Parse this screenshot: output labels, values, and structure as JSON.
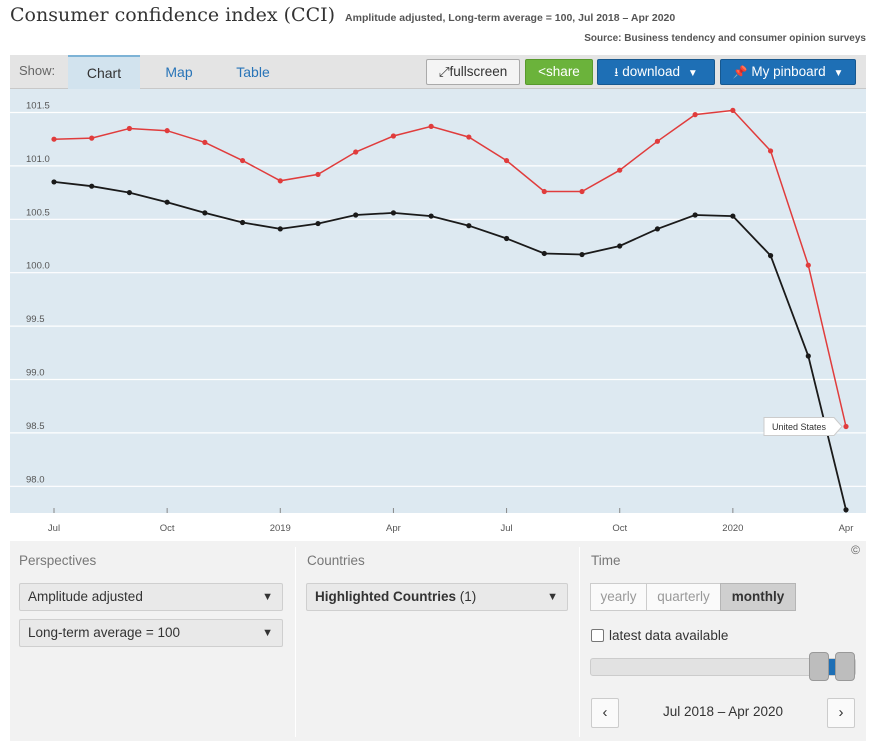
{
  "header": {
    "title": "Consumer confidence index (CCI)",
    "subtitle": "Amplitude adjusted, Long-term average = 100, Jul 2018 – Apr 2020",
    "source": "Source: Business tendency and consumer opinion surveys"
  },
  "tabs": {
    "show_label": "Show:",
    "items": [
      "Chart",
      "Map",
      "Table"
    ],
    "active": "Chart"
  },
  "toolbar": {
    "fullscreen": "fullscreen",
    "share": "share",
    "download": "download",
    "pinboard": "My pinboard",
    "colors": {
      "share": "#6bb33b",
      "download": "#1e6fb5",
      "pinboard": "#1e6fb5"
    }
  },
  "chart_data": {
    "type": "line",
    "x": [
      "Jul 2018",
      "Aug 2018",
      "Sep 2018",
      "Oct 2018",
      "Nov 2018",
      "Dec 2018",
      "Jan 2019",
      "Feb 2019",
      "Mar 2019",
      "Apr 2019",
      "May 2019",
      "Jun 2019",
      "Jul 2019",
      "Aug 2019",
      "Sep 2019",
      "Oct 2019",
      "Nov 2019",
      "Dec 2019",
      "Jan 2020",
      "Feb 2020",
      "Mar 2020",
      "Apr 2020"
    ],
    "xticks": [
      {
        "label": "Jul",
        "index": 0
      },
      {
        "label": "Oct",
        "index": 3
      },
      {
        "label": "2019",
        "index": 6
      },
      {
        "label": "Apr",
        "index": 9
      },
      {
        "label": "Jul",
        "index": 12
      },
      {
        "label": "Oct",
        "index": 15
      },
      {
        "label": "2020",
        "index": 18
      },
      {
        "label": "Apr",
        "index": 21
      }
    ],
    "yticks": [
      "101.5",
      "101.0",
      "100.5",
      "100.0",
      "99.5",
      "99.0",
      "98.5",
      "98.0"
    ],
    "ylim": [
      97.75,
      101.72
    ],
    "grid": true,
    "background": "#dde9f1",
    "series": [
      {
        "color": "#1a1a1a",
        "values": [
          100.85,
          100.81,
          100.75,
          100.66,
          100.56,
          100.47,
          100.41,
          100.46,
          100.54,
          100.56,
          100.53,
          100.44,
          100.32,
          100.18,
          100.17,
          100.25,
          100.41,
          100.54,
          100.53,
          100.16,
          99.22,
          97.78
        ]
      },
      {
        "name": "United States",
        "color": "#e03c3c",
        "values": [
          101.25,
          101.26,
          101.35,
          101.33,
          101.22,
          101.05,
          100.86,
          100.92,
          101.13,
          101.28,
          101.37,
          101.27,
          101.05,
          100.76,
          100.76,
          100.96,
          101.23,
          101.48,
          101.52,
          101.14,
          100.07,
          98.56
        ]
      }
    ],
    "annotation": {
      "text": "United States",
      "series": "United States",
      "index": 21
    }
  },
  "panel": {
    "perspectives": {
      "title": "Perspectives",
      "select1": "Amplitude adjusted",
      "select2": "Long-term average = 100"
    },
    "countries": {
      "title": "Countries",
      "select_label": "Highlighted Countries",
      "select_count": "(1)"
    },
    "time": {
      "title": "Time",
      "options": [
        "yearly",
        "quarterly",
        "monthly"
      ],
      "active": "monthly",
      "latest_label": "latest data available",
      "range": "Jul 2018 – Apr 2020",
      "prev": "‹",
      "next": "›"
    },
    "copyright": "©"
  }
}
